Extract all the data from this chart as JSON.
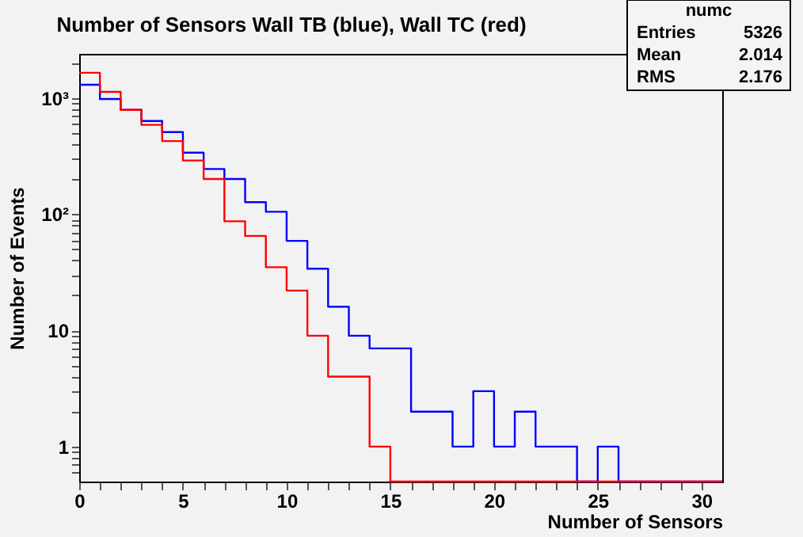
{
  "chart_data": {
    "type": "histogram",
    "title": "Number of Sensors Wall TB (blue), Wall TC (red)",
    "xlabel": "Number of Sensors",
    "ylabel": "Number of Events",
    "bins": [
      0,
      1,
      2,
      3,
      4,
      5,
      6,
      7,
      8,
      9,
      10,
      11,
      12,
      13,
      14,
      15,
      16,
      17,
      18,
      19,
      20,
      21,
      22,
      23,
      24,
      25,
      26,
      27,
      28,
      29,
      30,
      31
    ],
    "series": [
      {
        "color": "#0000ff",
        "values": [
          1300,
          980,
          790,
          634,
          509,
          339,
          245,
          201,
          127,
          105,
          59,
          34,
          16,
          9,
          7,
          7,
          2,
          2,
          1,
          3,
          1,
          2,
          1,
          1,
          null,
          1,
          null,
          null,
          null,
          null,
          null
        ]
      },
      {
        "color": "#ff0000",
        "values": [
          1650,
          1130,
          790,
          588,
          426,
          290,
          201,
          87,
          65,
          35,
          22,
          9,
          4,
          4,
          1,
          null,
          null,
          null,
          null,
          null,
          null,
          null,
          null,
          null,
          null,
          null,
          null,
          null,
          null,
          null,
          null
        ]
      }
    ],
    "log": "y",
    "grid": false,
    "legend": false,
    "xlim": [
      0,
      31
    ],
    "xticks": [
      0,
      {
        "value": 1,
        "label": null
      },
      {
        "value": 2,
        "label": null
      },
      {
        "value": 3,
        "label": null
      },
      {
        "value": 4,
        "label": null
      },
      5,
      {
        "value": 6,
        "label": null
      },
      {
        "value": 7,
        "label": null
      },
      {
        "value": 8,
        "label": null
      },
      {
        "value": 9,
        "label": null
      },
      10,
      {
        "value": 11,
        "label": null
      },
      {
        "value": 12,
        "label": null
      },
      {
        "value": 13,
        "label": null
      },
      {
        "value": 14,
        "label": null
      },
      15,
      {
        "value": 16,
        "label": null
      },
      {
        "value": 17,
        "label": null
      },
      {
        "value": 18,
        "label": null
      },
      {
        "value": 19,
        "label": null
      },
      20,
      {
        "value": 21,
        "label": null
      },
      {
        "value": 22,
        "label": null
      },
      {
        "value": 23,
        "label": null
      },
      {
        "value": 24,
        "label": null
      },
      25,
      {
        "value": 26,
        "label": null
      },
      {
        "value": 27,
        "label": null
      },
      {
        "value": 28,
        "label": null
      },
      {
        "value": 29,
        "label": null
      },
      30
    ],
    "ylim": [
      0.5,
      2400
    ],
    "yticks": [
      {
        "value": 0.6,
        "label": null
      },
      {
        "value": 0.7,
        "label": null
      },
      {
        "value": 0.8,
        "label": null
      },
      {
        "value": 0.9,
        "label": null
      },
      1,
      {
        "value": 2,
        "label": null
      },
      {
        "value": 3,
        "label": null
      },
      {
        "value": 4,
        "label": null
      },
      {
        "value": 5,
        "label": null
      },
      {
        "value": 6,
        "label": null
      },
      {
        "value": 7,
        "label": null
      },
      {
        "value": 8,
        "label": null
      },
      {
        "value": 9,
        "label": null
      },
      10,
      {
        "value": 20,
        "label": null
      },
      {
        "value": 30,
        "label": null
      },
      {
        "value": 40,
        "label": null
      },
      {
        "value": 50,
        "label": null
      },
      {
        "value": 60,
        "label": null
      },
      {
        "value": 70,
        "label": null
      },
      {
        "value": 80,
        "label": null
      },
      {
        "value": 90,
        "label": null
      },
      {
        "value": 100,
        "label": "10²"
      },
      {
        "value": 200,
        "label": null
      },
      {
        "value": 300,
        "label": null
      },
      {
        "value": 400,
        "label": null
      },
      {
        "value": 500,
        "label": null
      },
      {
        "value": 600,
        "label": null
      },
      {
        "value": 700,
        "label": null
      },
      {
        "value": 800,
        "label": null
      },
      {
        "value": 900,
        "label": null
      },
      {
        "value": 1000,
        "label": "10³"
      },
      {
        "value": 2000,
        "label": null
      }
    ],
    "annotations": [
      "numc",
      "Entries",
      "5326",
      "Mean",
      "2.014",
      "RMS",
      "2.176"
    ]
  }
}
